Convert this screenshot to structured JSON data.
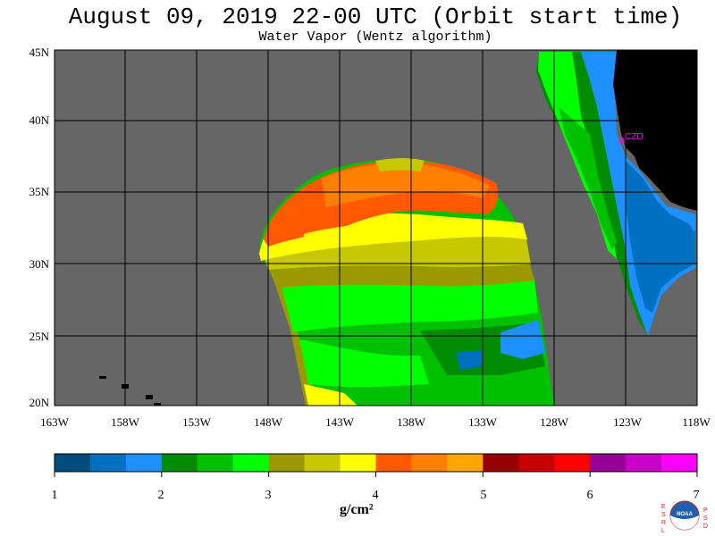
{
  "title": "August 09, 2019  22-00 UTC  (Orbit start time)",
  "subtitle": "Water Vapor (Wentz algorithm)",
  "lat_ticks": [
    "45N",
    "40N",
    "35N",
    "30N",
    "25N",
    "20N"
  ],
  "lon_ticks": [
    "163W",
    "158W",
    "153W",
    "148W",
    "143W",
    "138W",
    "133W",
    "128W",
    "123W",
    "118W"
  ],
  "station_label": "CZD",
  "colorbar": {
    "colors": [
      "#004c7a",
      "#0070c0",
      "#1e90ff",
      "#008c00",
      "#00c000",
      "#00ff00",
      "#9a9a00",
      "#c8c800",
      "#ffff00",
      "#ff5a00",
      "#ff8000",
      "#ffa500",
      "#960000",
      "#c80000",
      "#ff0000",
      "#960096",
      "#c800c8",
      "#ff00ff"
    ],
    "tick_labels": [
      "1",
      "2",
      "3",
      "4",
      "5",
      "6",
      "7"
    ],
    "unit": "g/cm²"
  },
  "colors": {
    "no_data": "#666666",
    "land": "#000000",
    "grid": "#000000",
    "station": "#ff00ff"
  },
  "logo": {
    "left_letters": "ESRL",
    "right_letters": "PSD",
    "center_text": "NOAA"
  }
}
